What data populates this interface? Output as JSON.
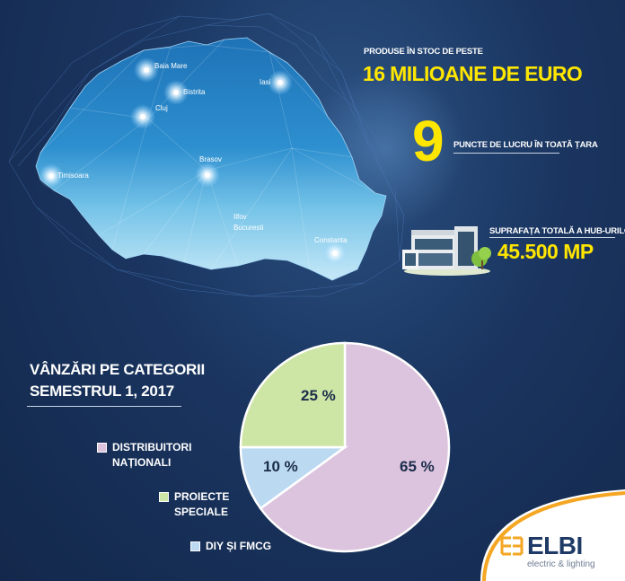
{
  "map": {
    "cities": [
      {
        "name": "Baia Mare",
        "glow": true
      },
      {
        "name": "Bistrita",
        "glow": true
      },
      {
        "name": "Iasi",
        "glow": true
      },
      {
        "name": "Cluj",
        "glow": true
      },
      {
        "name": "Brasov",
        "glow": true
      },
      {
        "name": "Timisoara",
        "glow": true
      },
      {
        "name": "Ilfov",
        "glow": false
      },
      {
        "name": "Bucuresti",
        "glow": false
      },
      {
        "name": "Constanta",
        "glow": true
      }
    ]
  },
  "stats": {
    "stock_label": "PRODUSE ÎN STOC DE PESTE",
    "stock_value": "16 MILIOANE DE EURO",
    "points_number": "9",
    "points_label": "PUNCTE DE LUCRU ÎN TOATĂ ȚARA",
    "surface_label": "SUPRAFAȚA TOTALĂ A HUB-URILOR:",
    "surface_value": "45.500 MP"
  },
  "chart_title_line1": "VÂNZĂRI PE CATEGORII",
  "chart_title_line2": "SEMESTRUL 1, 2017",
  "chart_data": {
    "type": "pie",
    "title": "VÂNZĂRI PE CATEGORII SEMESTRUL 1, 2017",
    "slices": [
      {
        "label": "DISTRIBUITORI NAȚIONALI",
        "value": 65,
        "display": "65 %",
        "color": "#dcc3de"
      },
      {
        "label": "PROIECTE SPECIALE",
        "value": 25,
        "display": "25 %",
        "color": "#cde5a5"
      },
      {
        "label": "DIY ȘI FMCG",
        "value": 10,
        "display": "10 %",
        "color": "#bcd9f2"
      }
    ],
    "legend_position": "left"
  },
  "legend": [
    {
      "line1": "DISTRIBUITORI",
      "line2": "NAȚIONALI",
      "color": "#dcc3de"
    },
    {
      "line1": "PROIECTE",
      "line2": "SPECIALE",
      "color": "#cde5a5"
    },
    {
      "line1": "DIY ȘI FMCG",
      "line2": "",
      "color": "#bcd9f2"
    }
  ],
  "logo": {
    "name": "ELBI",
    "tagline": "electric & lighting",
    "accent_color": "#f5a623",
    "text_color": "#1f3a66"
  },
  "colors": {
    "background": "#1a3560",
    "highlight_yellow": "#ffe600"
  }
}
